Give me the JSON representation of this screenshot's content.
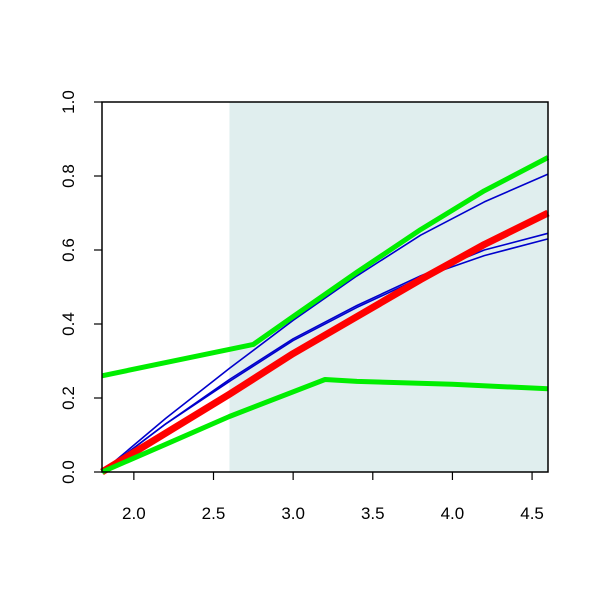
{
  "chart_data": {
    "type": "line",
    "title": "",
    "xlabel": "",
    "ylabel": "",
    "xlim": [
      1.8,
      4.6
    ],
    "ylim": [
      0,
      1
    ],
    "grid": false,
    "legend": "none",
    "x_ticks": [
      "2.0",
      "2.5",
      "3.0",
      "3.5",
      "4.0",
      "4.5"
    ],
    "y_ticks": [
      "0.0",
      "0.2",
      "0.4",
      "0.6",
      "0.8",
      "1.0"
    ],
    "shaded_region": {
      "x_from": 2.6,
      "x_to": 4.6,
      "color": "#e0eeee"
    },
    "series": [
      {
        "color": "#0000cc",
        "width": 1.6,
        "points": [
          [
            1.8,
            0
          ],
          [
            2.2,
            0.13
          ],
          [
            2.6,
            0.25
          ],
          [
            3.0,
            0.36
          ],
          [
            3.4,
            0.45
          ],
          [
            3.8,
            0.53
          ],
          [
            4.2,
            0.6
          ],
          [
            4.6,
            0.645
          ]
        ]
      },
      {
        "color": "#0000cc",
        "width": 1.6,
        "points": [
          [
            1.8,
            0
          ],
          [
            2.2,
            0.13
          ],
          [
            2.6,
            0.245
          ],
          [
            3.0,
            0.355
          ],
          [
            3.4,
            0.445
          ],
          [
            3.8,
            0.525
          ],
          [
            4.2,
            0.585
          ],
          [
            4.6,
            0.63
          ]
        ]
      },
      {
        "color": "#0000cc",
        "width": 1.6,
        "points": [
          [
            1.8,
            0
          ],
          [
            2.2,
            0.145
          ],
          [
            2.6,
            0.28
          ],
          [
            3.0,
            0.41
          ],
          [
            3.4,
            0.53
          ],
          [
            3.8,
            0.64
          ],
          [
            4.2,
            0.73
          ],
          [
            4.6,
            0.805
          ]
        ]
      },
      {
        "color": "#ff0000",
        "width": 7,
        "points": [
          [
            1.8,
            0
          ],
          [
            2.2,
            0.105
          ],
          [
            2.6,
            0.21
          ],
          [
            3.0,
            0.32
          ],
          [
            3.4,
            0.42
          ],
          [
            3.8,
            0.52
          ],
          [
            4.2,
            0.615
          ],
          [
            4.6,
            0.7
          ]
        ]
      },
      {
        "color": "#00ee00",
        "width": 5,
        "points": [
          [
            1.8,
            0.26
          ],
          [
            2.75,
            0.345
          ],
          [
            3.0,
            0.42
          ],
          [
            3.4,
            0.54
          ],
          [
            3.8,
            0.655
          ],
          [
            4.2,
            0.76
          ],
          [
            4.6,
            0.85
          ]
        ]
      },
      {
        "color": "#00ee00",
        "width": 5,
        "points": [
          [
            1.8,
            0
          ],
          [
            2.2,
            0.075
          ],
          [
            2.6,
            0.15
          ],
          [
            3.2,
            0.25
          ],
          [
            3.4,
            0.245
          ],
          [
            4.0,
            0.237
          ],
          [
            4.6,
            0.225
          ]
        ]
      }
    ]
  }
}
